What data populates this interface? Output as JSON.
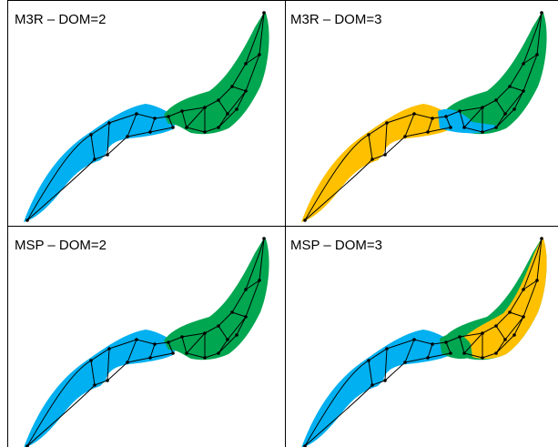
{
  "panels": [
    {
      "title": "M3R – DOM=2"
    },
    {
      "title": "M3R – DOM=3"
    },
    {
      "title": "MSP – DOM=2"
    },
    {
      "title": "MSP – DOM=3"
    }
  ]
}
